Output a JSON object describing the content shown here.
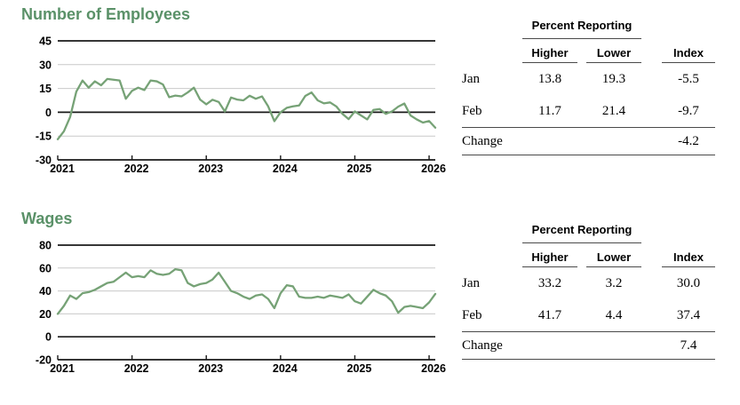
{
  "colors": {
    "title_green": "#5a9168",
    "line_green": "#76a276",
    "grid_gray": "#c9c9c9",
    "axis_black": "#1a1a1a",
    "rule_gray": "#4a4a4a",
    "text_black": "#000000",
    "background": "#ffffff"
  },
  "chart_data": [
    {
      "type": "line",
      "title": "Number of Employees",
      "x_start": "Jan 2021",
      "x_end": "Feb 2026",
      "x_frequency": "monthly",
      "x_tick_labels": [
        "2021",
        "2022",
        "2023",
        "2024",
        "2025",
        "2026"
      ],
      "ylim": [
        -30,
        45
      ],
      "yticks": [
        -30,
        -15,
        0,
        15,
        30,
        45
      ],
      "dark_lines": [
        -30,
        0,
        45
      ],
      "grid": true,
      "legend": "none",
      "series": [
        {
          "name": "Number of Employees index",
          "values": [
            -17,
            -12,
            -3,
            13,
            20,
            15.5,
            19.5,
            17,
            21,
            20.5,
            20,
            8.5,
            13.5,
            15.5,
            14,
            20,
            19.5,
            17.5,
            9.5,
            10.5,
            10,
            12.5,
            15.5,
            8,
            5,
            7.9,
            6.5,
            0.5,
            9.3,
            8,
            7.5,
            10.4,
            8.5,
            10,
            3.7,
            -5.6,
            0,
            2.8,
            3.7,
            4.3,
            10.3,
            12.5,
            7.5,
            5.6,
            6.2,
            3.7,
            -1,
            -4.3,
            0.5,
            -2,
            -4.5,
            1.5,
            2,
            -1,
            0.5,
            3.5,
            5.5,
            -2,
            -4.5,
            -6.5,
            -5.5,
            -9.7
          ]
        }
      ]
    },
    {
      "type": "line",
      "title": "Wages",
      "x_start": "Jan 2021",
      "x_end": "Feb 2026",
      "x_frequency": "monthly",
      "x_tick_labels": [
        "2021",
        "2022",
        "2023",
        "2024",
        "2025",
        "2026"
      ],
      "ylim": [
        -20,
        80
      ],
      "yticks": [
        -20,
        0,
        20,
        40,
        60,
        80
      ],
      "dark_lines": [
        -20,
        0,
        80
      ],
      "grid": true,
      "legend": "none",
      "series": [
        {
          "name": "Wages index",
          "values": [
            20,
            27,
            36,
            33,
            38,
            39,
            41,
            44,
            47,
            48,
            52,
            56,
            52,
            53,
            52,
            58,
            55,
            54,
            55,
            59,
            58,
            47,
            44,
            46,
            47,
            50,
            56,
            48,
            40,
            38,
            35,
            33,
            36,
            37,
            33,
            25,
            38,
            45,
            44,
            35,
            34,
            34,
            35,
            34,
            36,
            35,
            34,
            37,
            31,
            29,
            35,
            41,
            38,
            36,
            31,
            21,
            26,
            27,
            26,
            25,
            30,
            37.4
          ]
        }
      ]
    }
  ],
  "tables": [
    {
      "group_header": "Percent Reporting",
      "columns": [
        "Higher",
        "Lower",
        "Index"
      ],
      "rows": [
        {
          "label": "Jan",
          "higher": "13.8",
          "lower": "19.3",
          "index": "-5.5"
        },
        {
          "label": "Feb",
          "higher": "11.7",
          "lower": "21.4",
          "index": "-9.7"
        }
      ],
      "change_row": {
        "label": "Change",
        "index": "-4.2"
      }
    },
    {
      "group_header": "Percent Reporting",
      "columns": [
        "Higher",
        "Lower",
        "Index"
      ],
      "rows": [
        {
          "label": "Jan",
          "higher": "33.2",
          "lower": "3.2",
          "index": "30.0"
        },
        {
          "label": "Feb",
          "higher": "41.7",
          "lower": "4.4",
          "index": "37.4"
        }
      ],
      "change_row": {
        "label": "Change",
        "index": "7.4"
      }
    }
  ]
}
